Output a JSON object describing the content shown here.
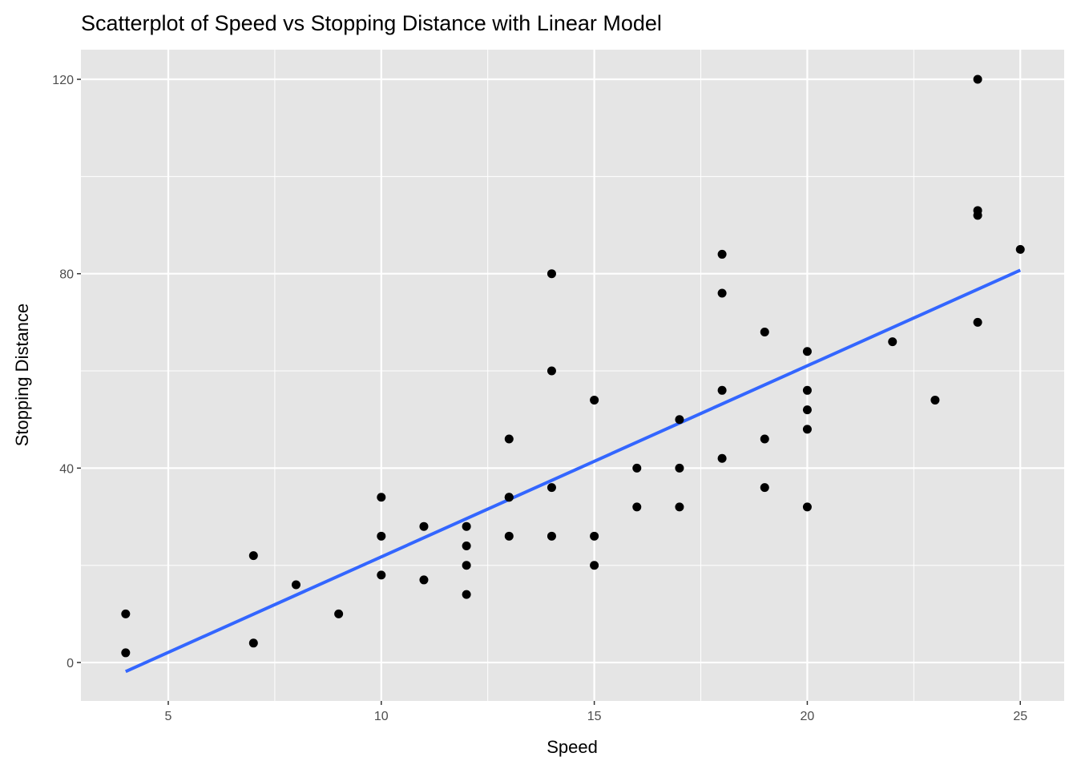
{
  "chart_data": {
    "type": "scatter",
    "title": "Scatterplot of Speed vs Stopping Distance with Linear Model",
    "xlabel": "Speed",
    "ylabel": "Stopping Distance",
    "xlim": [
      2.95,
      26.03
    ],
    "ylim": [
      -7.9,
      126.1
    ],
    "xticks": [
      5,
      10,
      15,
      20,
      25
    ],
    "xtick_labels": [
      "5",
      "10",
      "15",
      "20",
      "25"
    ],
    "yticks": [
      0,
      40,
      80,
      120
    ],
    "ytick_labels": [
      "0",
      "40",
      "80",
      "120"
    ],
    "grid": true,
    "x": [
      4,
      4,
      7,
      7,
      8,
      9,
      10,
      10,
      10,
      11,
      11,
      12,
      12,
      12,
      12,
      13,
      13,
      13,
      13,
      14,
      14,
      14,
      14,
      15,
      15,
      15,
      16,
      16,
      17,
      17,
      17,
      18,
      18,
      18,
      18,
      19,
      19,
      19,
      20,
      20,
      20,
      20,
      20,
      22,
      23,
      24,
      24,
      24,
      24,
      25
    ],
    "y": [
      2,
      10,
      4,
      22,
      16,
      10,
      18,
      26,
      34,
      17,
      28,
      14,
      20,
      24,
      28,
      26,
      34,
      34,
      46,
      26,
      36,
      60,
      80,
      20,
      26,
      54,
      32,
      40,
      32,
      40,
      50,
      42,
      56,
      76,
      84,
      36,
      46,
      68,
      32,
      48,
      52,
      56,
      64,
      66,
      54,
      70,
      92,
      93,
      120,
      85
    ],
    "fit": {
      "type": "linear",
      "intercept": -17.579,
      "slope": 3.932,
      "x_range": [
        4,
        25
      ],
      "color": "#3366FF"
    },
    "point_color": "#000000",
    "panel_color": "#E5E5E5"
  }
}
